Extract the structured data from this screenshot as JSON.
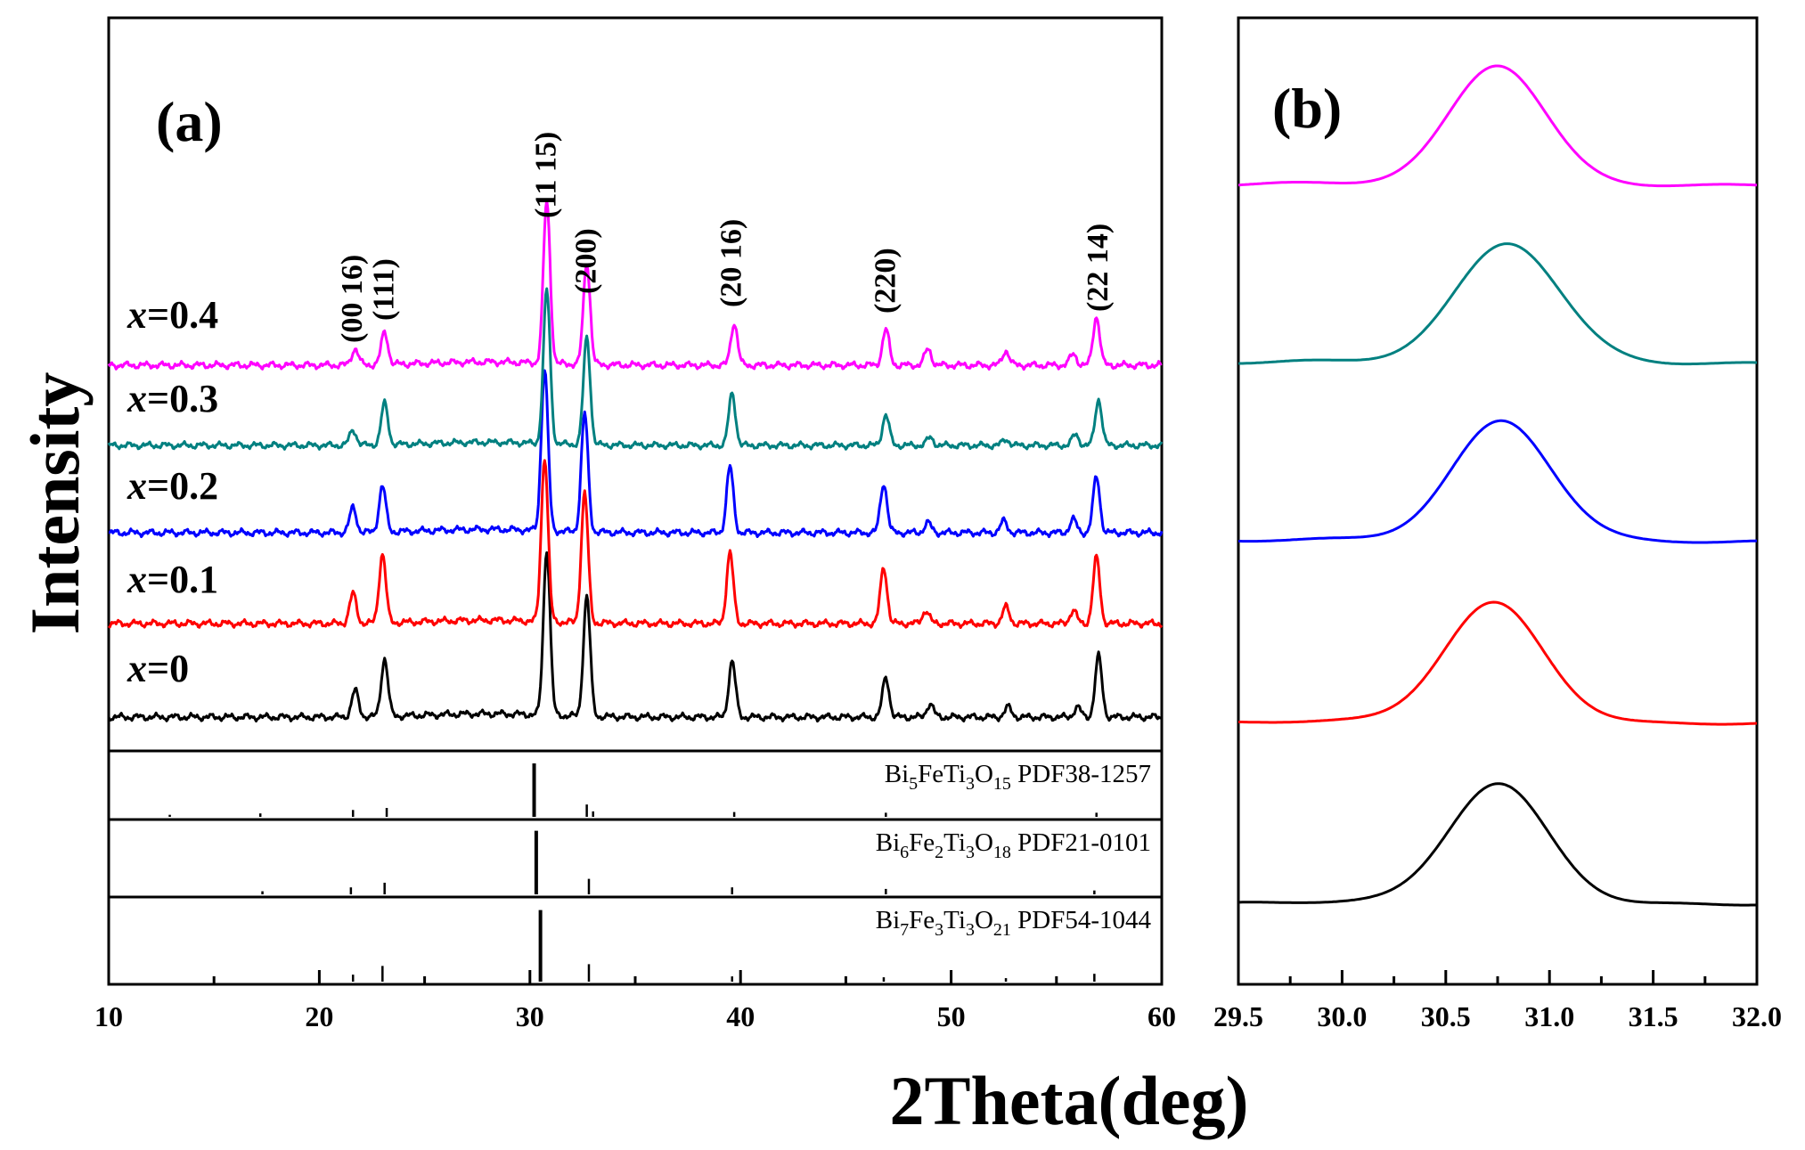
{
  "chart_data": [
    {
      "panel": "(a)",
      "type": "line",
      "xlabel": "2Theta(deg)",
      "ylabel": "Intensity",
      "xlim": [
        10,
        60
      ],
      "x_ticks": [
        "10",
        "20",
        "30",
        "40",
        "50",
        "60"
      ],
      "series": [
        {
          "name": "x=0",
          "label_italic": "x",
          "label_rest": "=0",
          "color": "#000000",
          "peaks": [
            [
              21.7,
              0.16
            ],
            [
              23.1,
              0.35
            ],
            [
              30.8,
              1.0
            ],
            [
              32.7,
              0.73
            ],
            [
              39.6,
              0.34
            ],
            [
              46.9,
              0.24
            ],
            [
              49.0,
              0.08
            ],
            [
              52.7,
              0.06
            ],
            [
              56.0,
              0.06
            ],
            [
              57.0,
              0.37
            ]
          ]
        },
        {
          "name": "x=0.1",
          "label_italic": "x",
          "label_rest": "=0.1",
          "color": "#ff0000",
          "peaks": [
            [
              21.6,
              0.18
            ],
            [
              23.0,
              0.42
            ],
            [
              30.7,
              1.0
            ],
            [
              32.6,
              0.79
            ],
            [
              39.5,
              0.43
            ],
            [
              46.8,
              0.34
            ],
            [
              48.8,
              0.08
            ],
            [
              52.6,
              0.1
            ],
            [
              55.8,
              0.08
            ],
            [
              56.9,
              0.4
            ]
          ]
        },
        {
          "name": "x=0.2",
          "label_italic": "x",
          "label_rest": "=0.2",
          "color": "#0000ff",
          "peaks": [
            [
              21.6,
              0.15
            ],
            [
              23.0,
              0.28
            ],
            [
              30.7,
              0.98
            ],
            [
              32.6,
              0.72
            ],
            [
              39.5,
              0.4
            ],
            [
              46.8,
              0.3
            ],
            [
              48.9,
              0.06
            ],
            [
              52.5,
              0.07
            ],
            [
              55.8,
              0.08
            ],
            [
              56.9,
              0.34
            ]
          ]
        },
        {
          "name": "x=0.3",
          "label_italic": "x",
          "label_rest": "=0.3",
          "color": "#008080",
          "peaks": [
            [
              21.6,
              0.1
            ],
            [
              23.1,
              0.27
            ],
            [
              30.8,
              1.0
            ],
            [
              32.7,
              0.7
            ],
            [
              39.6,
              0.34
            ],
            [
              46.9,
              0.2
            ],
            [
              49.0,
              0.05
            ],
            [
              52.6,
              0.04
            ],
            [
              55.9,
              0.07
            ],
            [
              57.0,
              0.3
            ]
          ]
        },
        {
          "name": "x=0.4",
          "label_italic": "x",
          "label_rest": "=0.4",
          "color": "#ff00ff",
          "peaks": [
            [
              21.7,
              0.1
            ],
            [
              23.1,
              0.2
            ],
            [
              30.8,
              1.0
            ],
            [
              32.7,
              0.63
            ],
            [
              39.7,
              0.26
            ],
            [
              46.9,
              0.22
            ],
            [
              48.9,
              0.1
            ],
            [
              52.6,
              0.09
            ],
            [
              55.8,
              0.07
            ],
            [
              56.9,
              0.3
            ]
          ]
        }
      ],
      "peak_labels": [
        {
          "hkl": "(00 16)",
          "x": 21.6
        },
        {
          "hkl": "(111)",
          "x": 23.1
        },
        {
          "hkl": "(11 15)",
          "x": 30.8
        },
        {
          "hkl": "(200)",
          "x": 32.7
        },
        {
          "hkl": "(20 16)",
          "x": 39.6
        },
        {
          "hkl": "(220)",
          "x": 46.9
        },
        {
          "hkl": "(22 14)",
          "x": 57.0
        }
      ],
      "reference_patterns": [
        {
          "formula_parts": [
            [
              "Bi",
              ""
            ],
            [
              "5",
              "sub"
            ],
            [
              "FeTi",
              ""
            ],
            [
              "3",
              "sub"
            ],
            [
              "O",
              ""
            ],
            [
              "15",
              "sub"
            ],
            [
              " PDF38-1257",
              ""
            ]
          ],
          "sticks": [
            [
              12.9,
              0.03
            ],
            [
              17.2,
              0.05
            ],
            [
              21.6,
              0.1
            ],
            [
              23.2,
              0.13
            ],
            [
              30.2,
              0.78
            ],
            [
              32.7,
              0.18
            ],
            [
              33.0,
              0.08
            ],
            [
              39.7,
              0.07
            ],
            [
              46.9,
              0.06
            ],
            [
              56.9,
              0.06
            ]
          ]
        },
        {
          "formula_parts": [
            [
              "Bi",
              ""
            ],
            [
              "6",
              "sub"
            ],
            [
              "Fe",
              ""
            ],
            [
              "2",
              "sub"
            ],
            [
              "Ti",
              ""
            ],
            [
              "3",
              "sub"
            ],
            [
              "O",
              ""
            ],
            [
              "18",
              "sub"
            ],
            [
              " PDF21-0101",
              ""
            ]
          ],
          "sticks": [
            [
              17.3,
              0.04
            ],
            [
              21.5,
              0.09
            ],
            [
              23.1,
              0.15
            ],
            [
              30.3,
              0.82
            ],
            [
              32.8,
              0.2
            ],
            [
              39.6,
              0.09
            ],
            [
              46.9,
              0.07
            ],
            [
              56.8,
              0.05
            ]
          ]
        },
        {
          "formula_parts": [
            [
              "Bi",
              ""
            ],
            [
              "7",
              "sub"
            ],
            [
              "Fe",
              ""
            ],
            [
              "3",
              "sub"
            ],
            [
              "Ti",
              ""
            ],
            [
              "3",
              "sub"
            ],
            [
              "O",
              ""
            ],
            [
              "21",
              "sub"
            ],
            [
              " PDF54-1044",
              ""
            ]
          ],
          "sticks": [
            [
              21.6,
              0.08
            ],
            [
              23.0,
              0.18
            ],
            [
              30.5,
              0.82
            ],
            [
              32.8,
              0.2
            ],
            [
              39.6,
              0.06
            ],
            [
              46.8,
              0.05
            ],
            [
              52.6,
              0.04
            ],
            [
              56.8,
              0.09
            ]
          ]
        }
      ]
    },
    {
      "panel": "(b)",
      "type": "line",
      "xlabel": "2Theta(deg)",
      "xlim": [
        29.5,
        32.0
      ],
      "x_ticks": [
        "29.5",
        "30.0",
        "30.5",
        "31.0",
        "31.5",
        "32.0"
      ],
      "series": [
        {
          "name": "x=0",
          "color": "#000000",
          "center": 30.75,
          "sigma": 0.24
        },
        {
          "name": "x=0.1",
          "color": "#ff0000",
          "center": 30.73,
          "sigma": 0.24
        },
        {
          "name": "x=0.2",
          "color": "#0000ff",
          "center": 30.77,
          "sigma": 0.24
        },
        {
          "name": "x=0.3",
          "color": "#008080",
          "center": 30.8,
          "sigma": 0.25
        },
        {
          "name": "x=0.4",
          "color": "#ff00ff",
          "center": 30.75,
          "sigma": 0.23
        }
      ]
    }
  ]
}
